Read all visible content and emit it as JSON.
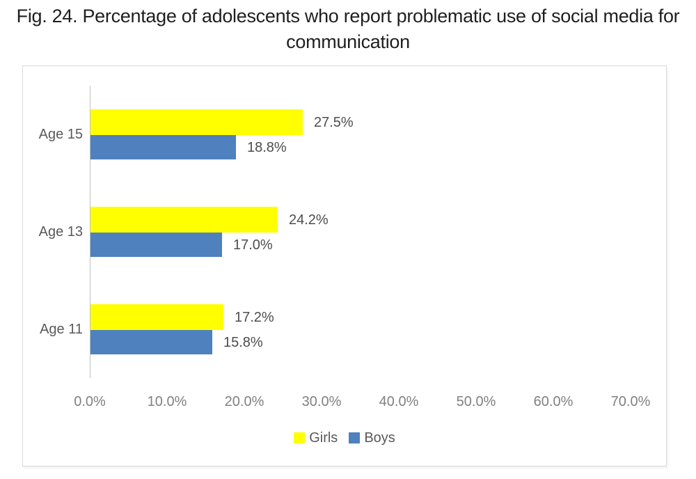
{
  "caption": {
    "line1": "Fig. 24. Percentage of adolescents who report problematic use of social media for",
    "line2": "communication"
  },
  "chart_data": {
    "type": "bar",
    "orientation": "horizontal",
    "title": "Fig. 24. Percentage of adolescents who report problematic use of social media for communication",
    "categories": [
      "Age 15",
      "Age 13",
      "Age 11"
    ],
    "series": [
      {
        "name": "Girls",
        "color": "#ffff00",
        "values": [
          27.5,
          24.2,
          17.2
        ],
        "labels": [
          "27.5%",
          "24.2%",
          "17.2%"
        ]
      },
      {
        "name": "Boys",
        "color": "#4e81bd",
        "values": [
          18.8,
          17.0,
          15.8
        ],
        "labels": [
          "18.8%",
          "17.0%",
          "15.8%"
        ]
      }
    ],
    "xlabel": "",
    "ylabel": "",
    "xlim": [
      0,
      70
    ],
    "x_tick_step": 10,
    "x_ticks": [
      "0.0%",
      "10.0%",
      "20.0%",
      "30.0%",
      "40.0%",
      "50.0%",
      "60.0%",
      "70.0%"
    ],
    "grid": false,
    "legend": [
      "Girls",
      "Boys"
    ],
    "legend_position": "bottom"
  },
  "colors": {
    "girls": "#ffff00",
    "boys": "#4e81bd",
    "frame_border": "#d8d8d8",
    "axis_line": "#c0c0c0",
    "tick_label": "#808080",
    "category_label": "#595959",
    "data_label": "#4d4d4d",
    "title_text": "#1f1f1f",
    "background": "#ffffff"
  }
}
